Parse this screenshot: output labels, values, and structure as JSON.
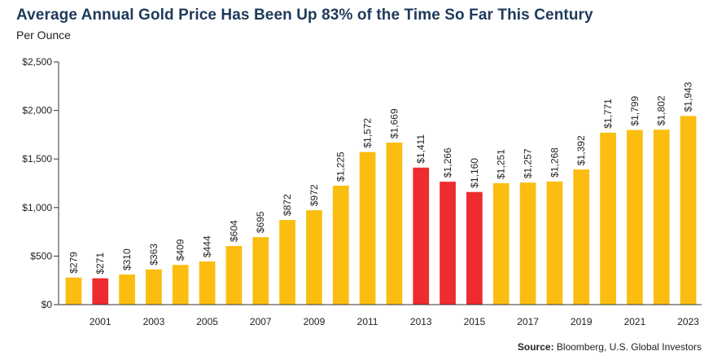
{
  "title": "Average Annual Gold Price Has Been Up 83% of the Time So Far This Century",
  "subtitle": "Per Ounce",
  "source_label": "Source:",
  "source_text": " Bloomberg, U.S. Global Investors",
  "colors": {
    "up": "#fbbe10",
    "down": "#ee2b2f",
    "axis": "#333333"
  },
  "chart_data": {
    "type": "bar",
    "title": "Average Annual Gold Price Has Been Up 83% of the Time So Far This Century",
    "subtitle": "Per Ounce",
    "categories": [
      "2000",
      "2001",
      "2002",
      "2003",
      "2004",
      "2005",
      "2006",
      "2007",
      "2008",
      "2009",
      "2010",
      "2011",
      "2012",
      "2013",
      "2014",
      "2015",
      "2016",
      "2017",
      "2018",
      "2019",
      "2020",
      "2021",
      "2022",
      "2023"
    ],
    "values": [
      279,
      271,
      310,
      363,
      409,
      444,
      604,
      695,
      872,
      972,
      1225,
      1572,
      1669,
      1411,
      1266,
      1160,
      1251,
      1257,
      1268,
      1392,
      1771,
      1799,
      1802,
      1943
    ],
    "data_labels": [
      "$279",
      "$271",
      "$310",
      "$363",
      "$409",
      "$444",
      "$604",
      "$695",
      "$872",
      "$972",
      "$1,225",
      "$1,572",
      "$1,669",
      "$1,411",
      "$1,266",
      "$1,160",
      "$1,251",
      "$1,257",
      "$1,268",
      "$1,392",
      "$1,771",
      "$1,799",
      "$1,802",
      "$1,943"
    ],
    "bar_colors": [
      "up",
      "down",
      "up",
      "up",
      "up",
      "up",
      "up",
      "up",
      "up",
      "up",
      "up",
      "up",
      "up",
      "down",
      "down",
      "down",
      "up",
      "up",
      "up",
      "up",
      "up",
      "up",
      "up",
      "up"
    ],
    "x_tick_labels": [
      "",
      "2001",
      "",
      "2003",
      "",
      "2005",
      "",
      "2007",
      "",
      "2009",
      "",
      "2011",
      "",
      "2013",
      "",
      "2015",
      "",
      "2017",
      "",
      "2019",
      "",
      "2021",
      "",
      "2023"
    ],
    "y_ticks": [
      0,
      500,
      1000,
      1500,
      2000,
      2500
    ],
    "y_tick_labels": [
      "$0",
      "$500",
      "$1,000",
      "$1,500",
      "$2,000",
      "$2,500"
    ],
    "ylim": [
      0,
      2500
    ],
    "xlabel": "",
    "ylabel": "",
    "grid": false,
    "legend": "none"
  }
}
